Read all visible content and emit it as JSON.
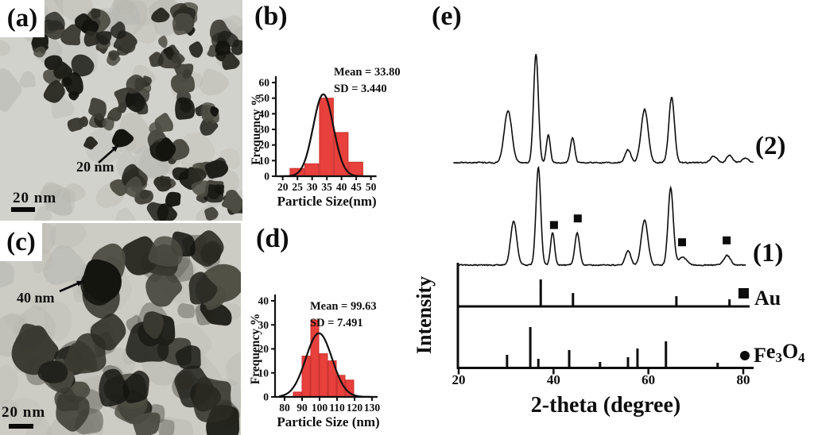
{
  "panels": {
    "a": {
      "label": "(a)",
      "annotation": "20 nm",
      "scalebar": "20 nm"
    },
    "b": {
      "label": "(b)"
    },
    "c": {
      "label": "(c)",
      "annotation": "40 nm",
      "scalebar": "20 nm"
    },
    "d": {
      "label": "(d)"
    },
    "e": {
      "label": "(e)"
    }
  },
  "chart_data": [
    {
      "id": "hist-b",
      "type": "bar",
      "panel": "(b)",
      "title": "",
      "xlabel": "Particle Size(nm)",
      "ylabel": "Frequency %",
      "bin_centers": [
        25,
        30,
        35,
        40,
        45
      ],
      "bin_width": 5,
      "values": [
        5,
        8,
        50,
        28,
        9
      ],
      "xticks": [
        20,
        25,
        30,
        35,
        40,
        45,
        50
      ],
      "yticks": [
        0,
        10,
        20,
        30,
        40,
        50,
        60
      ],
      "xlim": [
        17,
        52
      ],
      "ylim": [
        0,
        60
      ],
      "annotation_lines": [
        "Mean = 33.80",
        "SD = 3.440"
      ],
      "gaussian_fit": {
        "mean": 33.8,
        "sd": 3.44,
        "amplitude": 52.5
      },
      "colors": {
        "bar": "#e8403c",
        "bar_edge": "#c9322f",
        "curve": "#101010",
        "axis": "#101010"
      }
    },
    {
      "id": "hist-d",
      "type": "bar",
      "panel": "(d)",
      "title": "",
      "xlabel": "Particle Size (nm)",
      "ylabel": "Frequency %",
      "bin_centers": [
        87.5,
        92.5,
        97.5,
        102.5,
        107.5,
        112.5,
        117.5
      ],
      "bin_width": 5,
      "values": [
        2,
        17,
        32,
        18,
        15,
        9,
        7
      ],
      "xticks": [
        80,
        90,
        100,
        110,
        120,
        130
      ],
      "yticks": [
        0,
        10,
        20,
        30,
        40
      ],
      "xlim": [
        75,
        132
      ],
      "ylim": [
        0,
        40
      ],
      "annotation_lines": [
        "Mean = 99.63",
        "SD = 7.491"
      ],
      "gaussian_fit": {
        "mean": 99.63,
        "sd": 7.491,
        "amplitude": 26.5
      },
      "colors": {
        "bar": "#e8403c",
        "bar_edge": "#c9322f",
        "curve": "#101010",
        "axis": "#101010"
      }
    },
    {
      "id": "xrd-e",
      "type": "line",
      "panel": "(e)",
      "title": "",
      "xlabel": "2-theta (degree)",
      "ylabel": "Intensity",
      "xticks": [
        20,
        40,
        60,
        80
      ],
      "xlim": [
        20,
        81
      ],
      "series": [
        {
          "name": "(2)",
          "kind": "xrd-curve",
          "peaks": [
            [
              30.4,
              48,
              0.8
            ],
            [
              36.3,
              100,
              0.5
            ],
            [
              38.9,
              26,
              0.4
            ],
            [
              44.0,
              23,
              0.45
            ],
            [
              55.7,
              12,
              0.6
            ],
            [
              59.2,
              49,
              0.75
            ],
            [
              64.9,
              60,
              0.6
            ],
            [
              73.8,
              6,
              0.7
            ],
            [
              77.1,
              7,
              0.6
            ],
            [
              80.4,
              4,
              0.7
            ]
          ]
        },
        {
          "name": "(1)",
          "kind": "xrd-curve",
          "peaks": [
            [
              31.6,
              45,
              0.65
            ],
            [
              36.8,
              100,
              0.5
            ],
            [
              39.8,
              33,
              0.42
            ],
            [
              45.0,
              33,
              0.5
            ],
            [
              55.7,
              15,
              0.55
            ],
            [
              59.2,
              46,
              0.7
            ],
            [
              64.7,
              79,
              0.55
            ],
            [
              67.2,
              8,
              0.9
            ],
            [
              76.6,
              10,
              0.7
            ]
          ],
          "au_marker_positions": [
            40.1,
            45.1,
            67.1,
            76.5
          ]
        },
        {
          "name": "Au",
          "kind": "stick-reference",
          "marker": "square",
          "sticks": [
            [
              37.3,
              100
            ],
            [
              44.1,
              48
            ],
            [
              65.9,
              36
            ],
            [
              77.1,
              24
            ]
          ]
        },
        {
          "name": "Fe3O4",
          "kind": "stick-reference",
          "marker": "circle",
          "sticks": [
            [
              30.2,
              30
            ],
            [
              35.1,
              100
            ],
            [
              36.8,
              20
            ],
            [
              43.3,
              42
            ],
            [
              49.8,
              12
            ],
            [
              55.7,
              24
            ],
            [
              57.7,
              46
            ],
            [
              63.7,
              64
            ],
            [
              74.6,
              10
            ]
          ]
        }
      ]
    }
  ]
}
